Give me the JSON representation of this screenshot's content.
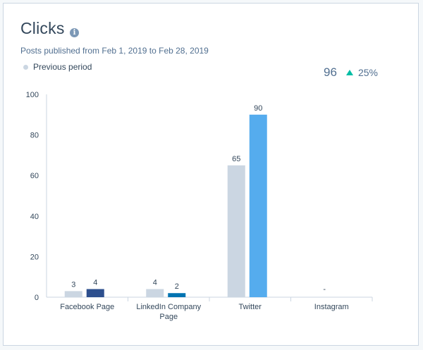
{
  "header": {
    "title": "Clicks",
    "info_icon": "info-icon",
    "subtitle": "Posts published from Feb 1, 2019 to Feb 28, 2019"
  },
  "legend": {
    "label": "Previous period",
    "color": "#cbd6e2"
  },
  "summary": {
    "value": "96",
    "change": "25%",
    "trend_icon": "up-triangle-icon",
    "trend_color": "#00bda5"
  },
  "chart_data": {
    "type": "bar",
    "categories": [
      [
        "Facebook Page"
      ],
      [
        "LinkedIn Company",
        "Page"
      ],
      [
        "Twitter"
      ],
      [
        "Instagram"
      ]
    ],
    "series": [
      {
        "name": "Previous period",
        "values": [
          3,
          4,
          65,
          null
        ],
        "color": "#cbd6e2"
      },
      {
        "values": [
          4,
          2,
          90,
          null
        ],
        "colors": [
          "#2d4f8e",
          "#0073b1",
          "#55acee",
          "#e1306c"
        ]
      }
    ],
    "missing_label": "-",
    "ylim": [
      0,
      100
    ],
    "yticks": [
      0,
      20,
      40,
      60,
      80,
      100
    ],
    "grid": false
  }
}
